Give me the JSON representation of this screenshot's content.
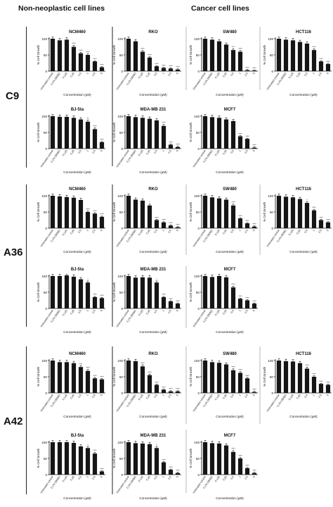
{
  "headers": {
    "left": "Non-neoplastic cell lines",
    "right": "Cancer cell lines"
  },
  "rows": [
    "C9",
    "A36",
    "A42"
  ],
  "chart_data": [
    {
      "type": "bar",
      "row": "C9",
      "title": "NCM460",
      "ylabel": "% Cell Growth",
      "xlabel": "Concentration (μM)",
      "ylim": [
        0,
        100
      ],
      "yticks": [
        0,
        50,
        100
      ],
      "categories": [
        "Untreated control",
        "0.1% DMSO",
        "0.125",
        "0.25",
        "0.5",
        "1",
        "2.5",
        "5"
      ],
      "values": [
        100,
        95,
        97,
        75,
        55,
        50,
        30,
        12
      ],
      "stars": [
        "",
        "",
        "",
        "****",
        "****",
        "****",
        "****",
        "****"
      ]
    },
    {
      "type": "bar",
      "row": "C9",
      "title": "RKO",
      "ylabel": "% Cell Growth",
      "xlabel": "Concentration (μM)",
      "ylim": [
        0,
        100
      ],
      "yticks": [
        0,
        50,
        100
      ],
      "categories": [
        "Untreated control",
        "0.1% DMSO",
        "0.125",
        "0.25",
        "0.5",
        "1",
        "2.5",
        "5"
      ],
      "values": [
        100,
        92,
        60,
        42,
        15,
        10,
        8,
        5
      ],
      "stars": [
        "",
        "",
        "****",
        "****",
        "****",
        "****",
        "****",
        "****"
      ]
    },
    {
      "type": "bar",
      "row": "C9",
      "title": "SW480",
      "ylabel": "% Cell Growth",
      "xlabel": "Concentration (μM)",
      "ylim": [
        0,
        100
      ],
      "yticks": [
        0,
        50,
        100
      ],
      "categories": [
        "Untreated control",
        "0.1% DMSO",
        "0.125",
        "0.25",
        "0.5",
        "1",
        "2.5",
        "5"
      ],
      "values": [
        100,
        97,
        92,
        82,
        65,
        60,
        3,
        2
      ],
      "stars": [
        "",
        "",
        "",
        "",
        "***",
        "****",
        "****",
        "****"
      ]
    },
    {
      "type": "bar",
      "row": "C9",
      "title": "HCT116",
      "ylabel": "% Cell Growth",
      "xlabel": "Concentration (μM)",
      "ylim": [
        0,
        100
      ],
      "yticks": [
        0,
        50,
        100
      ],
      "categories": [
        "Untreated control",
        "0.1% DMSO",
        "0.125",
        "0.25",
        "0.5",
        "1",
        "2.5",
        "5"
      ],
      "values": [
        100,
        97,
        95,
        90,
        85,
        65,
        30,
        22
      ],
      "stars": [
        "",
        "",
        "",
        "",
        "",
        "****",
        "****",
        "****"
      ]
    },
    {
      "type": "bar",
      "row": "C9",
      "title": "BJ-5ta",
      "ylabel": "% Cell Growth",
      "xlabel": "Concentration (μM)",
      "ylim": [
        0,
        100
      ],
      "yticks": [
        0,
        50,
        100
      ],
      "categories": [
        "Untreated control",
        "0.1% DMSO",
        "0.125",
        "0.25",
        "0.5",
        "1",
        "2.5",
        "5"
      ],
      "values": [
        100,
        98,
        98,
        95,
        90,
        83,
        60,
        20
      ],
      "stars": [
        "",
        "",
        "",
        "",
        "",
        "**",
        "****",
        "****"
      ]
    },
    {
      "type": "bar",
      "row": "C9",
      "title": "MDA-MB 231",
      "ylabel": "% Cell Growth",
      "xlabel": "Concentration (μM)",
      "ylim": [
        0,
        100
      ],
      "yticks": [
        0,
        50,
        100
      ],
      "categories": [
        "Untreated control",
        "0.1% DMSO",
        "0.125",
        "0.25",
        "0.5",
        "1",
        "2.5",
        "5"
      ],
      "values": [
        100,
        97,
        95,
        92,
        87,
        70,
        12,
        5
      ],
      "stars": [
        "",
        "",
        "",
        "",
        "",
        "****",
        "****",
        "****"
      ]
    },
    {
      "type": "bar",
      "row": "C9",
      "title": "MCF7",
      "ylabel": "% Cell Growth",
      "xlabel": "Concentration (μM)",
      "ylim": [
        0,
        100
      ],
      "yticks": [
        0,
        50,
        100
      ],
      "categories": [
        "Untreated control",
        "0.1% DMSO",
        "0.125",
        "0.25",
        "0.5",
        "1",
        "2.5",
        "5"
      ],
      "values": [
        100,
        97,
        95,
        90,
        85,
        38,
        30,
        3
      ],
      "stars": [
        "",
        "",
        "",
        "",
        "",
        "****",
        "****",
        "****"
      ]
    },
    {
      "type": "bar",
      "row": "A36",
      "title": "NCM460",
      "ylabel": "% Cell Growth",
      "xlabel": "Concentration (μM)",
      "ylim": [
        0,
        100
      ],
      "yticks": [
        0,
        50,
        100
      ],
      "categories": [
        "Untreated control",
        "0.1% DMSO",
        "0.125",
        "0.25",
        "0.5",
        "1",
        "2.5",
        "5"
      ],
      "values": [
        100,
        98,
        96,
        94,
        87,
        50,
        45,
        35
      ],
      "stars": [
        "",
        "",
        "",
        "",
        "",
        "****",
        "****",
        "****"
      ]
    },
    {
      "type": "bar",
      "row": "A36",
      "title": "RKO",
      "ylabel": "% Cell Growth",
      "xlabel": "Concentration (μM)",
      "ylim": [
        0,
        100
      ],
      "yticks": [
        0,
        50,
        100
      ],
      "categories": [
        "Untreated control",
        "0.1% DMSO",
        "0.125",
        "0.25",
        "0.5",
        "1",
        "2.5",
        "5"
      ],
      "values": [
        100,
        88,
        85,
        70,
        25,
        18,
        8,
        3
      ],
      "stars": [
        "",
        "",
        "",
        "*",
        "****",
        "****",
        "****",
        "****"
      ]
    },
    {
      "type": "bar",
      "row": "A36",
      "title": "SW480",
      "ylabel": "% Cell Growth",
      "xlabel": "Concentration (μM)",
      "ylim": [
        0,
        100
      ],
      "yticks": [
        0,
        50,
        100
      ],
      "categories": [
        "Untreated control",
        "0.1% DMSO",
        "0.125",
        "0.25",
        "0.5",
        "1",
        "2.5",
        "5"
      ],
      "values": [
        100,
        95,
        92,
        88,
        70,
        30,
        15,
        5
      ],
      "stars": [
        "",
        "",
        "",
        "",
        "****",
        "****",
        "****",
        "****"
      ]
    },
    {
      "type": "bar",
      "row": "A36",
      "title": "HCT116",
      "ylabel": "% Cell Growth",
      "xlabel": "Concentration (μM)",
      "ylim": [
        0,
        100
      ],
      "yticks": [
        0,
        50,
        100
      ],
      "categories": [
        "Untreated control",
        "0.1% DMSO",
        "0.125",
        "0.25",
        "0.5",
        "1",
        "2.5",
        "5"
      ],
      "values": [
        100,
        97,
        95,
        90,
        78,
        55,
        25,
        18
      ],
      "stars": [
        "",
        "",
        "",
        "",
        "*",
        "****",
        "****",
        "****"
      ]
    },
    {
      "type": "bar",
      "row": "A36",
      "title": "BJ-5ta",
      "ylabel": "% Cell Growth",
      "xlabel": "Concentration (μM)",
      "ylim": [
        0,
        100
      ],
      "yticks": [
        0,
        50,
        100
      ],
      "categories": [
        "Untreated control",
        "0.1% DMSO",
        "0.125",
        "0.25",
        "0.5",
        "1",
        "2.5",
        "5"
      ],
      "values": [
        100,
        100,
        102,
        98,
        90,
        80,
        35,
        32
      ],
      "stars": [
        "",
        "",
        "",
        "",
        "",
        "*",
        "****",
        "****"
      ]
    },
    {
      "type": "bar",
      "row": "A36",
      "title": "MDA-MB 231",
      "ylabel": "% Cell Growth",
      "xlabel": "Concentration (μM)",
      "ylim": [
        0,
        100
      ],
      "yticks": [
        0,
        50,
        100
      ],
      "categories": [
        "Untreated control",
        "0.1% DMSO",
        "0.125",
        "0.25",
        "0.5",
        "1",
        "2.5",
        "5"
      ],
      "values": [
        100,
        95,
        96,
        95,
        80,
        35,
        22,
        15
      ],
      "stars": [
        "",
        "",
        "",
        "",
        "*",
        "****",
        "****",
        "****"
      ]
    },
    {
      "type": "bar",
      "row": "A36",
      "title": "MCF7",
      "ylabel": "% Cell Growth",
      "xlabel": "Concentration (μM)",
      "ylim": [
        0,
        100
      ],
      "yticks": [
        0,
        50,
        100
      ],
      "categories": [
        "Untreated control",
        "0.1% DMSO",
        "0.125",
        "0.25",
        "0.5",
        "1",
        "2.5",
        "5"
      ],
      "values": [
        100,
        97,
        100,
        96,
        65,
        30,
        25,
        15
      ],
      "stars": [
        "",
        "",
        "",
        "",
        "****",
        "****",
        "****",
        "****"
      ]
    },
    {
      "type": "bar",
      "row": "A42",
      "title": "NCM460",
      "ylabel": "% Cell Growth",
      "xlabel": "Concentration (μM)",
      "ylim": [
        0,
        100
      ],
      "yticks": [
        0,
        50,
        100
      ],
      "categories": [
        "Untreated control",
        "0.1% DMSO",
        "0.125",
        "0.25",
        "0.5",
        "1",
        "2.5",
        "5"
      ],
      "values": [
        100,
        95,
        95,
        92,
        80,
        68,
        45,
        42
      ],
      "stars": [
        "",
        "",
        "",
        "",
        "***",
        "****",
        "****",
        "****"
      ]
    },
    {
      "type": "bar",
      "row": "A42",
      "title": "RKO",
      "ylabel": "% Cell Growth",
      "xlabel": "Concentration (μM)",
      "ylim": [
        0,
        100
      ],
      "yticks": [
        0,
        50,
        100
      ],
      "categories": [
        "Untreated control",
        "0.1% DMSO",
        "0.125",
        "0.25",
        "0.5",
        "1",
        "2.5",
        "5"
      ],
      "values": [
        100,
        98,
        82,
        55,
        25,
        10,
        5,
        5
      ],
      "stars": [
        "",
        "",
        "****",
        "****",
        "****",
        "****",
        "****",
        "****"
      ]
    },
    {
      "type": "bar",
      "row": "A42",
      "title": "SW480",
      "ylabel": "% Cell Growth",
      "xlabel": "Concentration (μM)",
      "ylim": [
        0,
        100
      ],
      "yticks": [
        0,
        50,
        100
      ],
      "categories": [
        "Untreated control",
        "0.1% DMSO",
        "0.125",
        "0.25",
        "0.5",
        "1",
        "2.5",
        "5"
      ],
      "values": [
        100,
        95,
        93,
        88,
        70,
        62,
        45,
        3
      ],
      "stars": [
        "",
        "",
        "",
        "",
        "****",
        "****",
        "****",
        "****"
      ]
    },
    {
      "type": "bar",
      "row": "A42",
      "title": "HCT116",
      "ylabel": "% Cell Growth",
      "xlabel": "Concentration (μM)",
      "ylim": [
        0,
        100
      ],
      "yticks": [
        0,
        50,
        100
      ],
      "categories": [
        "Untreated control",
        "0.1% DMSO",
        "0.125",
        "0.25",
        "0.5",
        "1",
        "2.5",
        "5"
      ],
      "values": [
        100,
        98,
        97,
        92,
        75,
        50,
        28,
        25
      ],
      "stars": [
        "",
        "",
        "",
        "",
        "****",
        "****",
        "****",
        "****"
      ]
    },
    {
      "type": "bar",
      "row": "A42",
      "title": "BJ-5ta",
      "ylabel": "% Cell Growth",
      "xlabel": "Concentration (μM)",
      "ylim": [
        0,
        100
      ],
      "yticks": [
        0,
        50,
        100
      ],
      "categories": [
        "Untreated control",
        "0.1% DMSO",
        "0.125",
        "0.25",
        "0.5",
        "1",
        "2.5",
        "5"
      ],
      "values": [
        100,
        100,
        100,
        98,
        87,
        82,
        65,
        10
      ],
      "stars": [
        "",
        "",
        "",
        "",
        "",
        "*",
        "****",
        "****"
      ]
    },
    {
      "type": "bar",
      "row": "A42",
      "title": "MDA-MB 231",
      "ylabel": "% Cell Growth",
      "xlabel": "Concentration (μM)",
      "ylim": [
        0,
        100
      ],
      "yticks": [
        0,
        50,
        100
      ],
      "categories": [
        "Untreated control",
        "0.1% DMSO",
        "0.125",
        "0.25",
        "0.5",
        "1",
        "2.5",
        "5"
      ],
      "values": [
        100,
        97,
        96,
        94,
        82,
        38,
        15,
        5
      ],
      "stars": [
        "",
        "",
        "",
        "",
        "*",
        "****",
        "****",
        "****"
      ]
    },
    {
      "type": "bar",
      "row": "A42",
      "title": "MCF7",
      "ylabel": "% Cell Growth",
      "xlabel": "Concentration (μM)",
      "ylim": [
        0,
        100
      ],
      "yticks": [
        0,
        50,
        100
      ],
      "categories": [
        "Untreated control",
        "0.1% DMSO",
        "0.125",
        "0.25",
        "0.5",
        "1",
        "2.5",
        "5"
      ],
      "values": [
        100,
        97,
        96,
        90,
        70,
        50,
        20,
        5
      ],
      "stars": [
        "",
        "",
        "",
        "",
        "****",
        "****",
        "****",
        "****"
      ]
    }
  ]
}
